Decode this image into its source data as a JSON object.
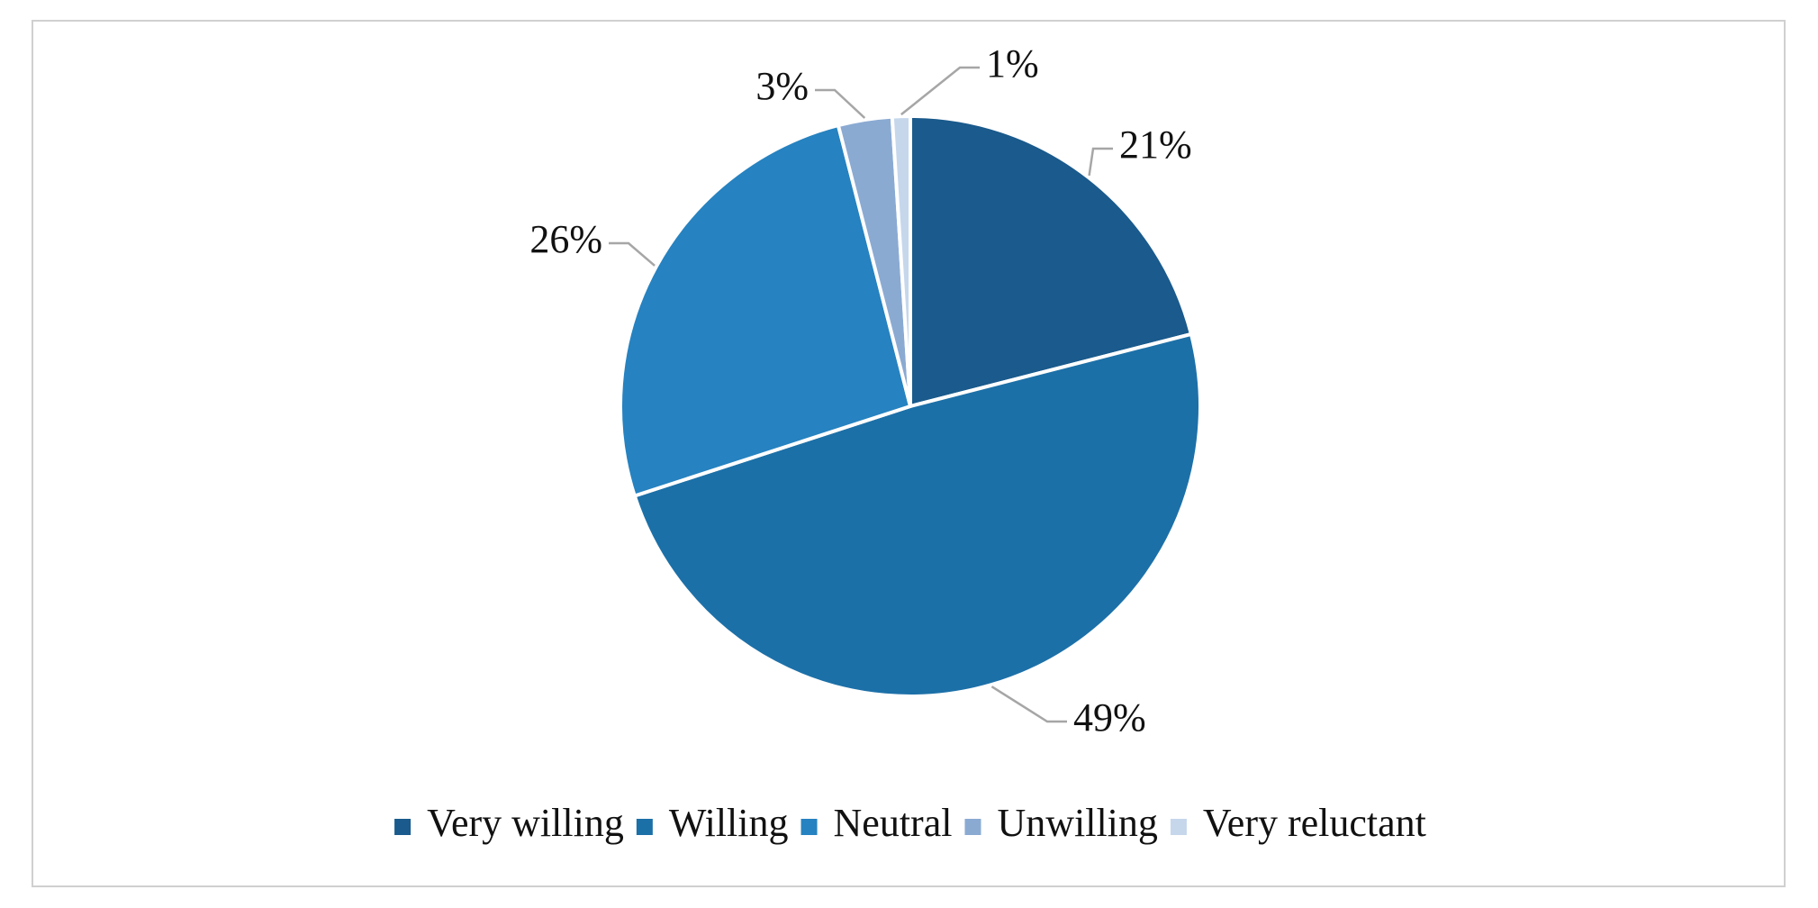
{
  "chart_data": {
    "type": "pie",
    "categories": [
      "Very willing",
      "Willing",
      "Neutral",
      "Unwilling",
      "Very reluctant"
    ],
    "values": [
      21,
      49,
      26,
      3,
      1
    ],
    "value_labels": [
      "21%",
      "49%",
      "26%",
      "3%",
      "1%"
    ],
    "colors": [
      "#1a5a8c",
      "#1c70a8",
      "#2682c0",
      "#8aaad2",
      "#c6d7ec"
    ],
    "legend": "bottom"
  }
}
